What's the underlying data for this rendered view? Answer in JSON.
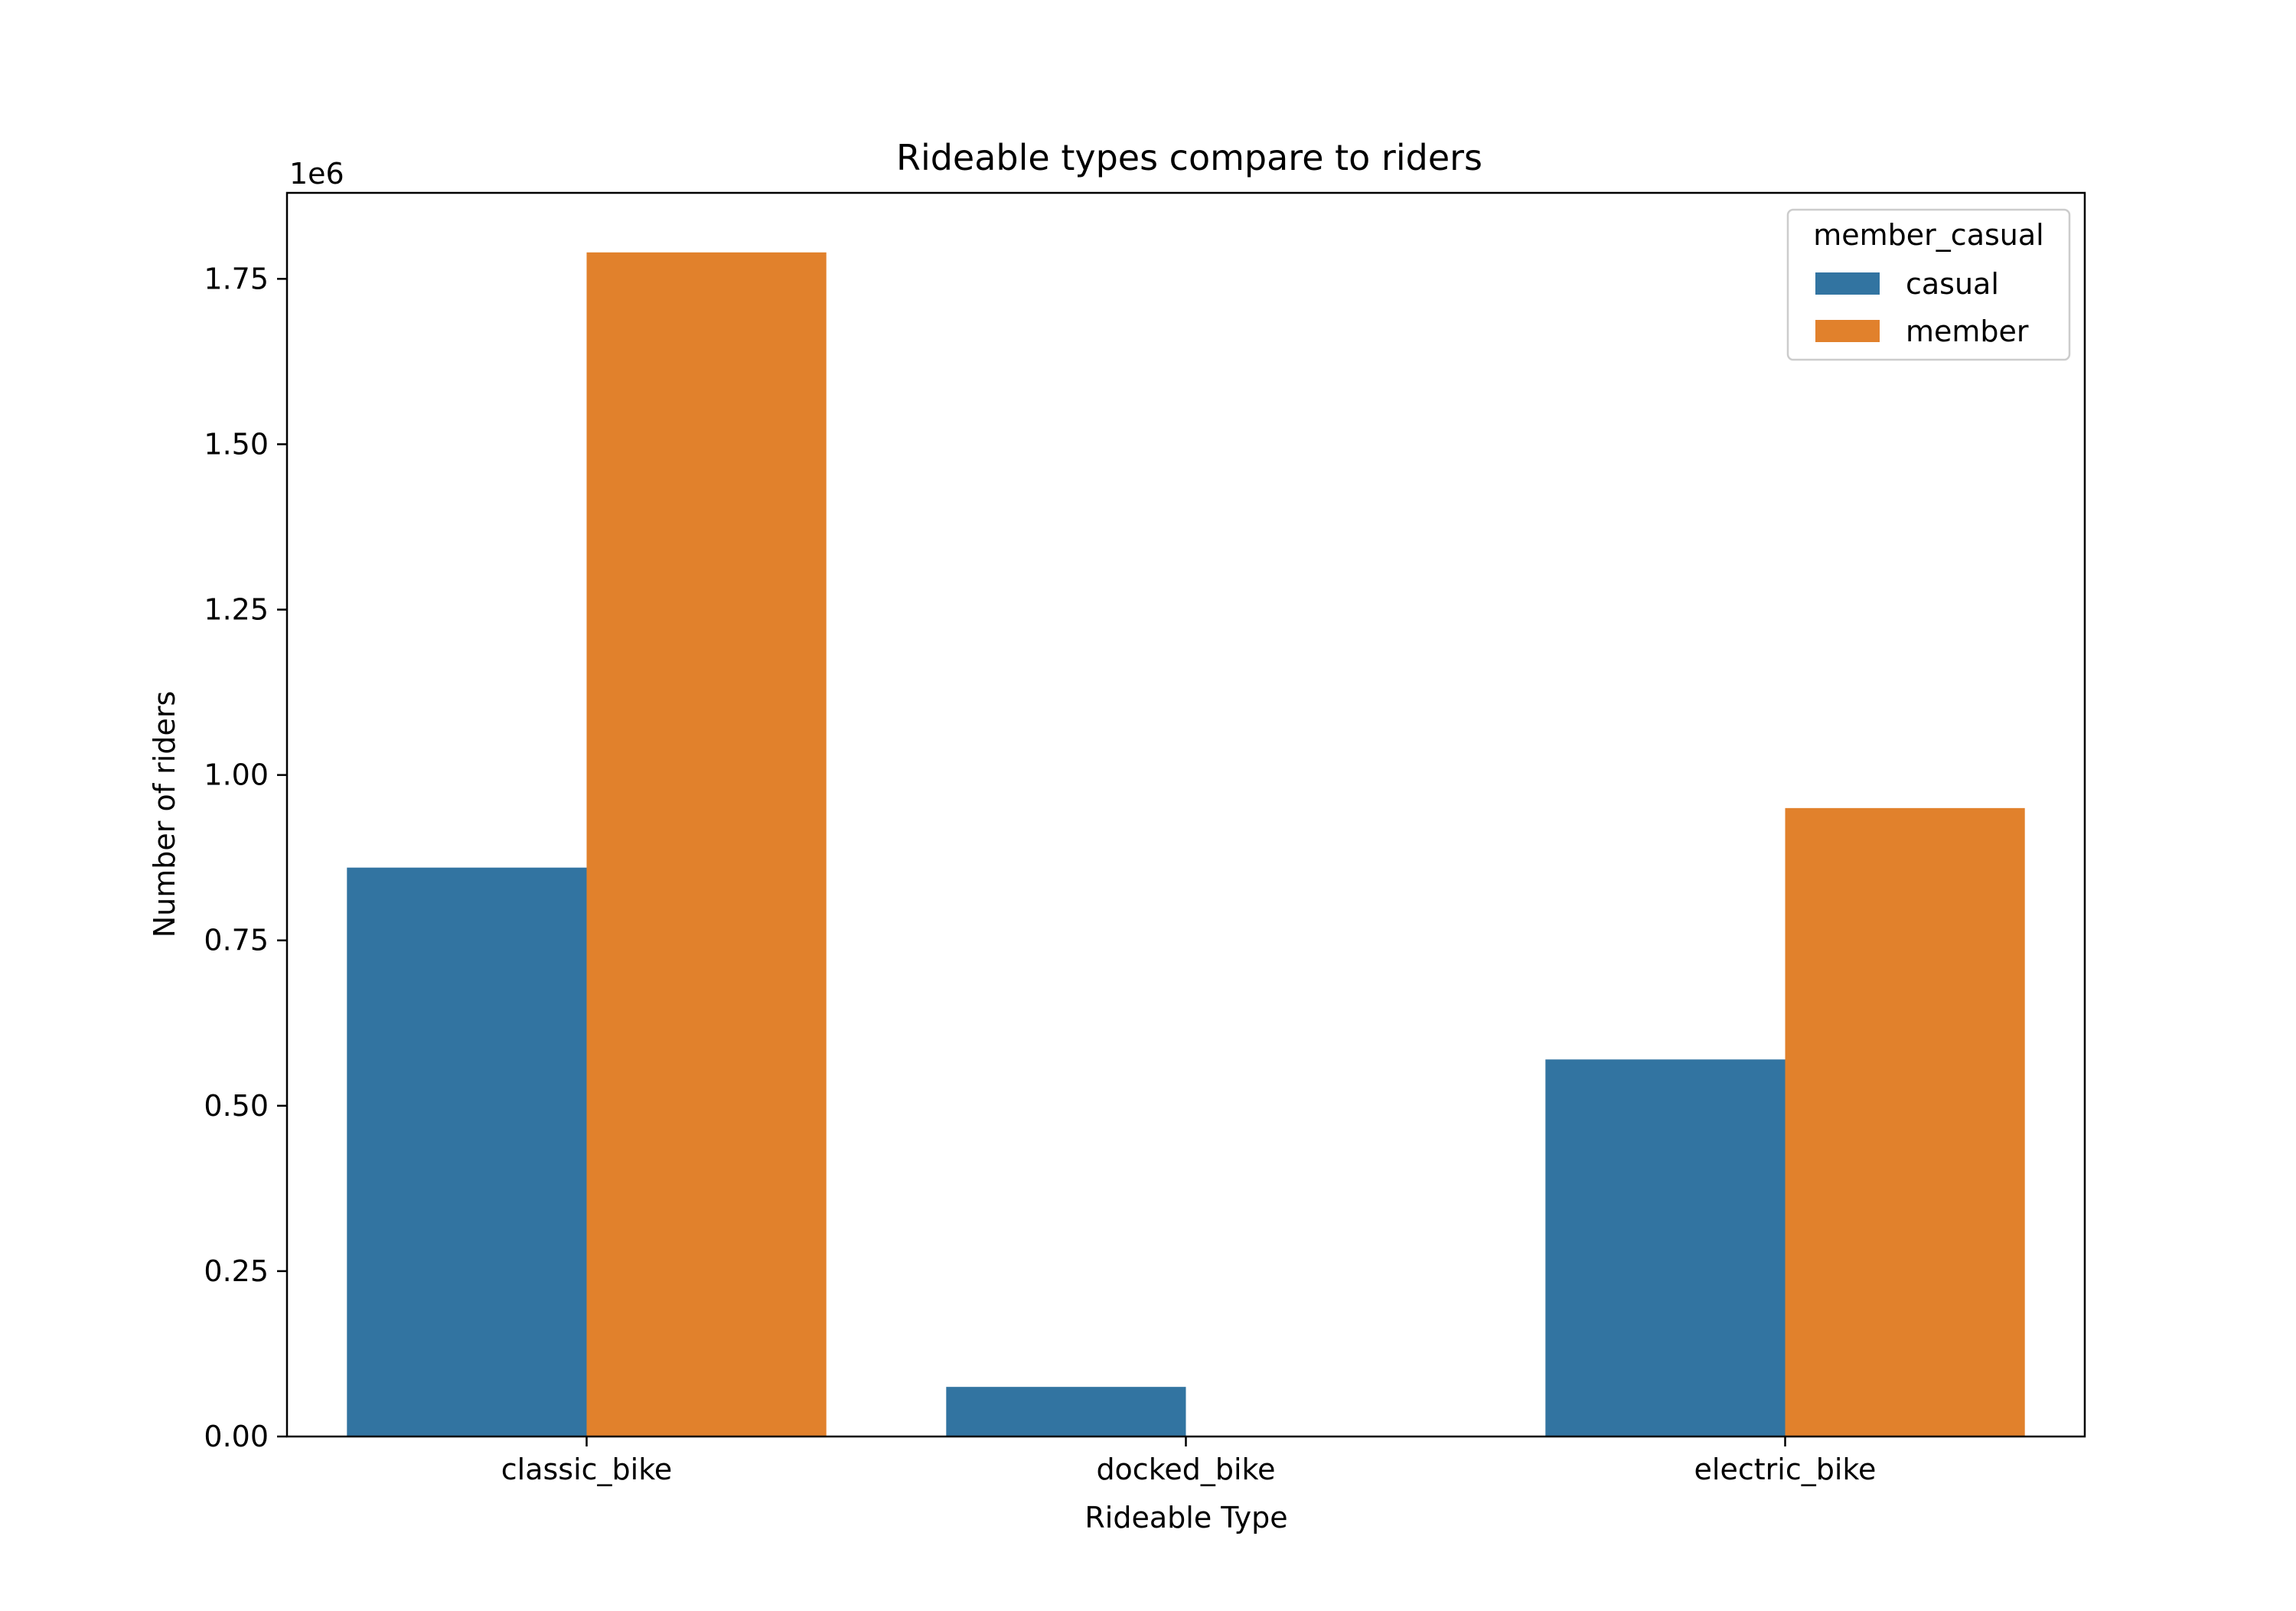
{
  "chart_data": {
    "type": "bar",
    "title": "Rideable types compare to riders",
    "xlabel": "Rideable Type",
    "ylabel": "Number of riders",
    "offset_label": "1e6",
    "categories": [
      "classic_bike",
      "docked_bike",
      "electric_bike"
    ],
    "series": [
      {
        "name": "casual",
        "color": "#3274a1",
        "values": [
          860000,
          75000,
          570000
        ]
      },
      {
        "name": "member",
        "color": "#e1812c",
        "values": [
          1790000,
          0,
          950000
        ]
      }
    ],
    "ylim": [
      0,
      1880000
    ],
    "yticks": [
      {
        "value": 0,
        "label": "0.00"
      },
      {
        "value": 250000,
        "label": "0.25"
      },
      {
        "value": 500000,
        "label": "0.50"
      },
      {
        "value": 750000,
        "label": "0.75"
      },
      {
        "value": 1000000,
        "label": "1.00"
      },
      {
        "value": 1250000,
        "label": "1.25"
      },
      {
        "value": 1500000,
        "label": "1.50"
      },
      {
        "value": 1750000,
        "label": "1.75"
      }
    ],
    "grid": false,
    "legend": {
      "title": "member_casual",
      "placement": "top-right"
    }
  }
}
